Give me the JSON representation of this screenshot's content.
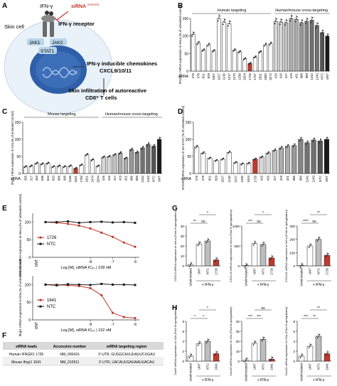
{
  "panel_letters": {
    "A": "A",
    "B": "B",
    "C": "C",
    "D": "D",
    "E": "E",
    "F": "F",
    "G": "G",
    "H": "H"
  },
  "schematic": {
    "ifng": "IFN-γ",
    "sirna": "siRNA",
    "sirna_sup": "IFNGR1",
    "receptor": "IFN-γ receptor",
    "skin_cell": "Skin cell",
    "jak1": "JAK1",
    "jak2": "JAK2",
    "stat1": "STAT1",
    "chemokines_1": "IFN-γ inducible chemokines",
    "chemokines_2": "CXCL9/10/11",
    "infiltration_1": "Skin infiltration of autoreactive",
    "infiltration_2": "CD8⁺ T cells"
  },
  "colors": {
    "red": "#c0392b",
    "bar_white": "#ffffff",
    "gray_light": "#cfcfcf",
    "gray_mid": "#9a9a9a",
    "gray_dark": "#555555",
    "black": "#1a1a1a"
  },
  "chart_data": [
    {
      "panel": "B",
      "type": "bar",
      "group_labels": [
        "Human targeting",
        "Human/mouse cross-targeting"
      ],
      "ylabel": "IFNGR1 mRNA expression in HeLa (% of untreated control)",
      "ylim": [
        0,
        150
      ],
      "yticks": [
        "0",
        "50",
        "100",
        "150"
      ],
      "xaxis_title": "siRNA",
      "categories": [
        "375",
        "378",
        "821",
        "829",
        "1007",
        "1027",
        "1130",
        "1217",
        "1270",
        "1330",
        "1524",
        "1726",
        "1757",
        "1821",
        "1882",
        "2072",
        "415",
        "416",
        "417",
        "419",
        "421",
        "986",
        "989",
        "1242",
        "1243",
        "NTC",
        "UNT"
      ],
      "values": [
        105,
        80,
        60,
        75,
        58,
        150,
        140,
        135,
        60,
        55,
        35,
        22,
        40,
        55,
        75,
        78,
        142,
        140,
        138,
        150,
        148,
        138,
        142,
        145,
        130,
        110,
        100
      ]
    },
    {
      "panel": "C",
      "type": "bar",
      "group_labels": [
        "Mouse targeting",
        "Human/mouse cross-targeting"
      ],
      "ylabel": "Ifngr1 mRNA expression in N2a (% of untreated control)",
      "ylim": [
        0,
        150
      ],
      "yticks": [
        "0",
        "50",
        "100",
        "150"
      ],
      "xaxis_title": "siRNA",
      "categories": [
        "305",
        "317",
        "453",
        "538",
        "634",
        "810",
        "906",
        "995",
        "1106",
        "1641",
        "1783",
        "1811",
        "1974",
        "2034",
        "415",
        "416",
        "417",
        "419",
        "421",
        "986",
        "989",
        "1242",
        "1243",
        "NTC",
        "UNT"
      ],
      "values": [
        20,
        22,
        30,
        28,
        30,
        20,
        22,
        20,
        22,
        15,
        25,
        55,
        40,
        22,
        48,
        50,
        55,
        60,
        45,
        70,
        62,
        75,
        85,
        80,
        100
      ]
    },
    {
      "panel": "D",
      "type": "bar",
      "ylabel": "IFNGR1 mRNA expression in SH-SY5Y (% of untreated control)",
      "ylim": [
        0,
        150
      ],
      "yticks": [
        "0",
        "50",
        "100",
        "150"
      ],
      "xaxis_title": "siRNA",
      "categories": [
        "375",
        "378",
        "821",
        "829",
        "1027",
        "1130",
        "1217",
        "1330",
        "1524",
        "1726",
        "415",
        "416",
        "417",
        "419",
        "421",
        "986",
        "989",
        "1242",
        "1243",
        "NTC",
        "UNT"
      ],
      "values": [
        78,
        60,
        45,
        38,
        42,
        62,
        32,
        28,
        30,
        42,
        48,
        60,
        68,
        75,
        80,
        82,
        100,
        90,
        98,
        95,
        100
      ]
    },
    {
      "panel": "E",
      "type": "line",
      "subplots": [
        {
          "ylabel": "IFNGR1 mRNA expression in HeLa (% of untreated control)",
          "series": [
            {
              "name": "1726",
              "color": "#c0392b",
              "x": [
                -10,
                -9.5,
                -9,
                -8.5,
                -8,
                -7.5,
                -7,
                -6.5,
                -6
              ],
              "y": [
                100,
                98,
                95,
                90,
                82,
                70,
                58,
                42,
                30
              ]
            },
            {
              "name": "NTC",
              "color": "#1a1a1a",
              "x": [
                -10,
                -9.5,
                -9,
                -8.5,
                -8,
                -7.5,
                -7,
                -6.5,
                -6
              ],
              "y": [
                100,
                100,
                102,
                98,
                100,
                101,
                99,
                100,
                98
              ]
            }
          ],
          "unt_label": "UNT",
          "ic50_label": "Log [M], siRNA  IC₅₀ | 228 nM",
          "yticks": [
            "0",
            "50",
            "100"
          ],
          "xticks": [
            "-8",
            "-7",
            "-6"
          ]
        },
        {
          "ylabel": "Ifngr1 mRNA expression in N2a (% of untreated control)",
          "series": [
            {
              "name": "1641",
              "color": "#c0392b",
              "x": [
                -10,
                -9.5,
                -9,
                -8.5,
                -8,
                -7.5,
                -7,
                -6.5,
                -6
              ],
              "y": [
                100,
                100,
                98,
                96,
                90,
                70,
                20,
                8,
                5
              ]
            },
            {
              "name": "NTC",
              "color": "#1a1a1a",
              "x": [
                -10,
                -9.5,
                -9,
                -8.5,
                -8,
                -7.5,
                -7,
                -6.5,
                -6
              ],
              "y": [
                100,
                98,
                101,
                100,
                99,
                102,
                100,
                100,
                99
              ]
            }
          ],
          "unt_label": "UNT",
          "ic50_label": "Log [M], siRNA  IC₅₀ | 152 nM",
          "yticks": [
            "0",
            "50",
            "100"
          ],
          "xticks": [
            "-8",
            "-7",
            "-6"
          ]
        }
      ]
    },
    {
      "panel": "F",
      "type": "table",
      "headers": [
        "siRNA leads",
        "Accession number",
        "mRNA targeting region"
      ],
      "rows": [
        [
          "Human IFNGR1 1726",
          "NM_000416",
          "3'-UTR, GUGGCAUUUAUUCUGAU"
        ],
        [
          "Mouse Ifngr1 1641",
          "NM_010511",
          "3'-UTR, UACAUUGAUAAUUACAU"
        ]
      ]
    },
    {
      "panel": "G",
      "type": "bar",
      "xaxis_title": "+ IFN-γ",
      "categories": [
        "Unstimulated",
        "UNT",
        "NTC",
        "1726"
      ],
      "subplots": [
        {
          "ylabel": "CXCL9 mRNA expression in HeLa (Fold of upregulation)",
          "values": [
            1,
            22,
            25,
            6
          ],
          "ylim": [
            0,
            40
          ],
          "yticks": [
            "0",
            "10",
            "20",
            "30",
            "40"
          ],
          "sig": [
            "**",
            "ns",
            "*"
          ]
        },
        {
          "ylabel": "CXCL10 mRNA expression in HeLa (Fold of upregulation)",
          "values": [
            1,
            560,
            540,
            200
          ],
          "ylim": [
            0,
            1000
          ],
          "yticks": [
            "0",
            "500",
            "1000"
          ],
          "sig": [
            "***",
            "ns",
            "*"
          ]
        },
        {
          "ylabel": "CXCL11 mRNA expression in HeLa (Fold of upregulation)",
          "values": [
            1,
            150,
            200,
            80
          ],
          "ylim": [
            0,
            300
          ],
          "yticks": [
            "0",
            "100",
            "200",
            "300"
          ],
          "sig": [
            "****",
            "ns",
            "**"
          ]
        }
      ]
    },
    {
      "panel": "H",
      "type": "bar",
      "xaxis_title": "+ IFN-γ",
      "categories": [
        "Unstimulated",
        "UNT",
        "NTC",
        "1641"
      ],
      "subplots": [
        {
          "ylabel": "Cxcl9 mRNA expression in N2a (Fold of upregulation)",
          "values": [
            1,
            3.5,
            4,
            1.5
          ],
          "ylim": [
            0,
            8
          ],
          "yticks": [
            "0",
            "2",
            "4",
            "6",
            "8"
          ],
          "sig": [
            "*",
            "*",
            "*"
          ]
        },
        {
          "ylabel": "Cxcl10 mRNA expression in N2a (Fold of upregulation)",
          "values": [
            1,
            18,
            22,
            2
          ],
          "ylim": [
            0,
            40
          ],
          "yticks": [
            "0",
            "10",
            "20",
            "30",
            "40"
          ],
          "sig": [
            "***",
            "***",
            "ns"
          ]
        },
        {
          "ylabel": "Cxcl11 mRNA expression in N2a (Fold of upregulation)",
          "values": [
            1,
            3,
            5,
            1.5
          ],
          "ylim": [
            0,
            8
          ],
          "yticks": [
            "0",
            "2",
            "4",
            "6",
            "8"
          ],
          "sig": [
            "***",
            "**",
            "**"
          ]
        }
      ]
    }
  ]
}
